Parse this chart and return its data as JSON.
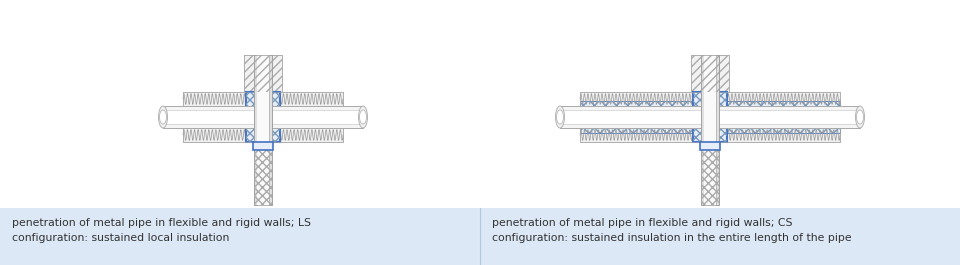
{
  "bg_color": "#ffffff",
  "caption_bg": "#dce8f5",
  "caption_text_left": "penetration of metal pipe in flexible and rigid walls; LS\nconfiguration: sustained local insulation",
  "caption_text_right": "penetration of metal pipe in flexible and rigid walls; CS\nconfiguration: sustained insulation in the entire length of the pipe",
  "text_color": "#333333",
  "pipe_fill": "#f5f5f5",
  "pipe_outline": "#aaaaaa",
  "hatch_color": "#bbbbbb",
  "blue_color": "#4472c4",
  "divider_color": "#b0c8e0",
  "wall_fill": "#f0f0f0",
  "insul_fill": "#eaeaea",
  "spring_fill": "#ebebeb"
}
